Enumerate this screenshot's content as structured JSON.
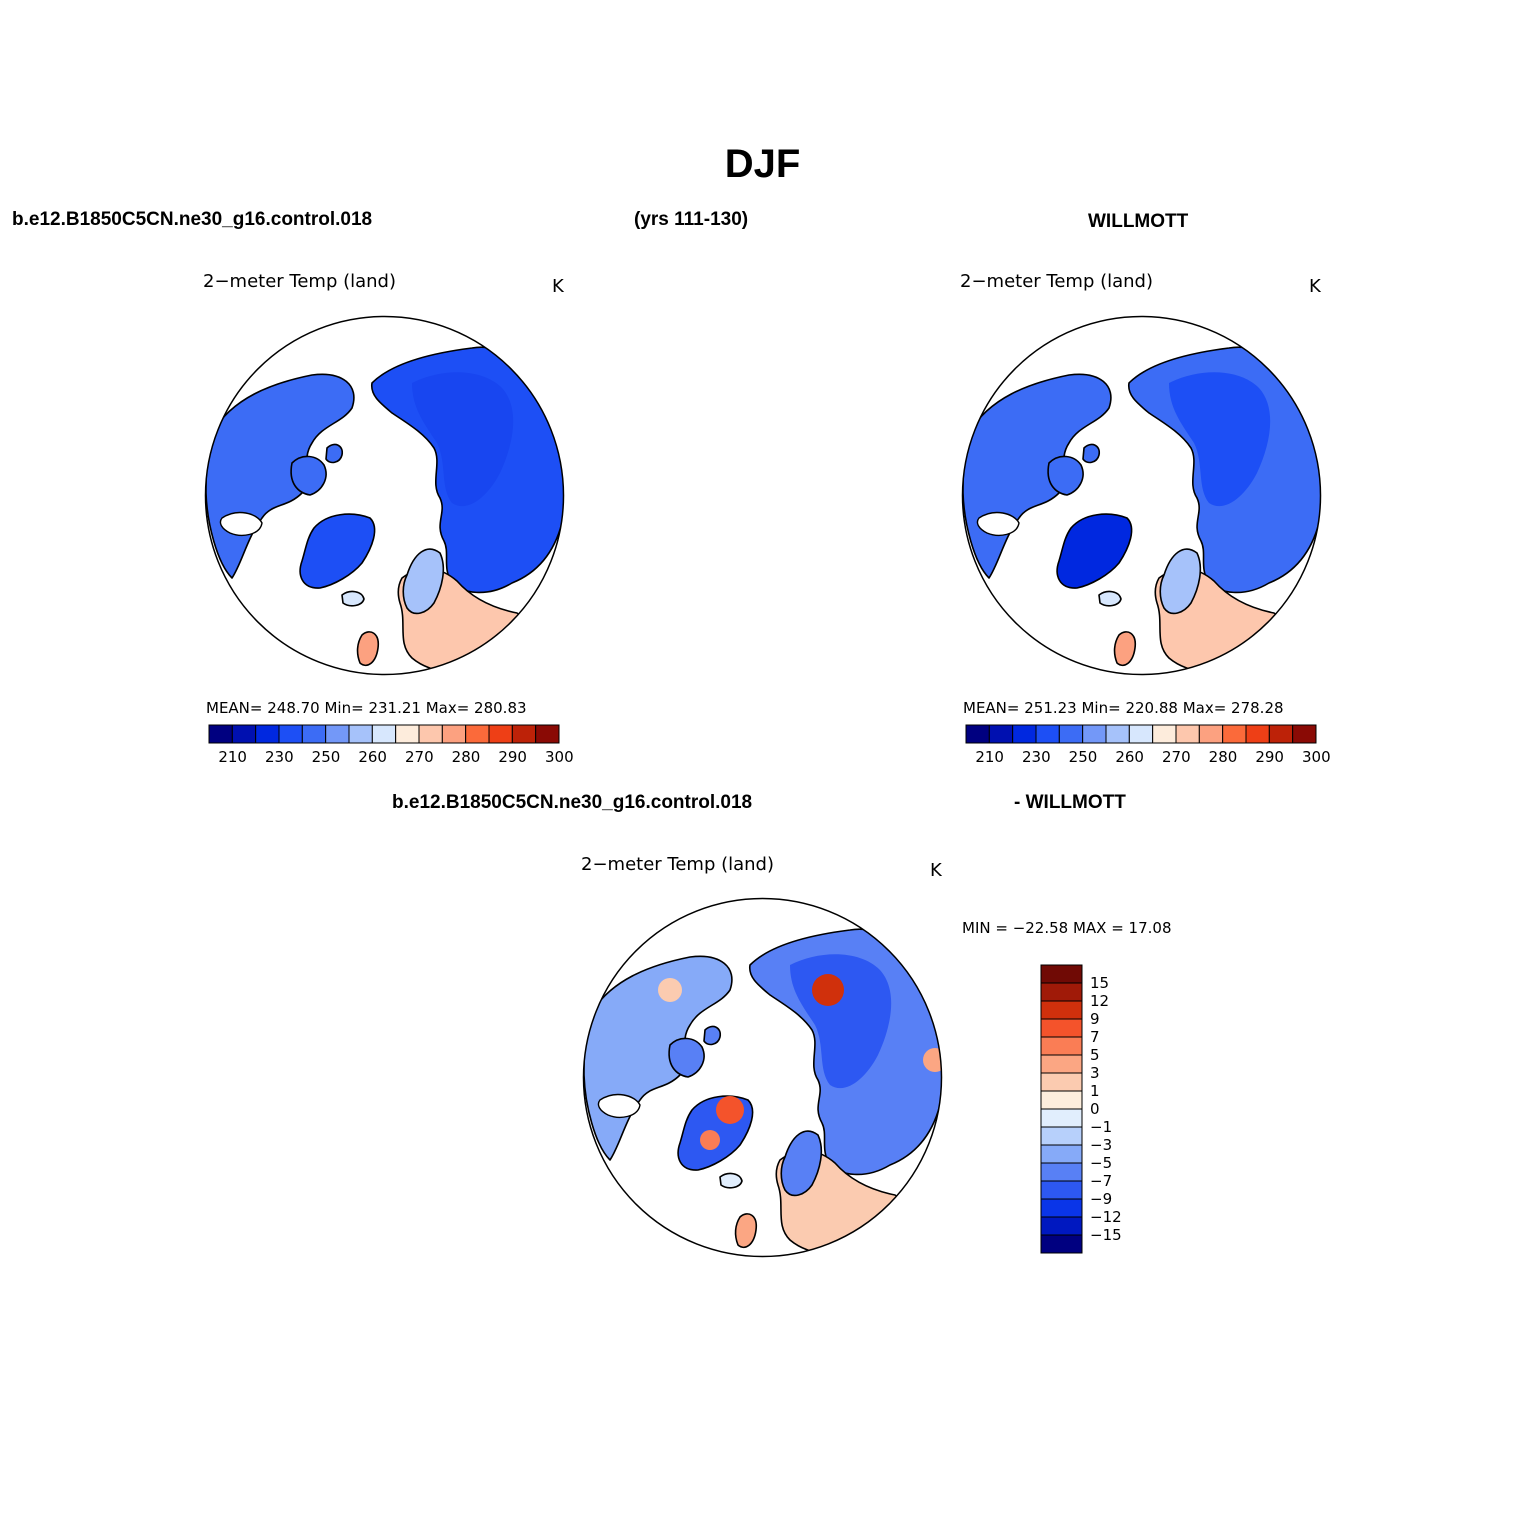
{
  "main_title": "DJF",
  "case_name": "b.e12.B1850C5CN.ne30_g16.control.018",
  "years": "(yrs 111-130)",
  "obs_name": "WILLMOTT",
  "diff_case_name": "b.e12.B1850C5CN.ne30_g16.control.018",
  "diff_obs_name": "- WILLMOTT",
  "colors": {
    "abs_scale": [
      "#000080",
      "#0010b0",
      "#0028e0",
      "#1d4ff5",
      "#3c6cf5",
      "#7398f8",
      "#a6c2fa",
      "#d7e7fd",
      "#fdecdc",
      "#fdc7ad",
      "#fca180",
      "#fb6a3a",
      "#ee3f16",
      "#bd2208",
      "#8a0a05"
    ],
    "diff_scale": [
      "#000080",
      "#0018c0",
      "#0a35e8",
      "#2d58f2",
      "#5880f5",
      "#86aaf8",
      "#b7d0fb",
      "#e1eefd",
      "#fdeedd",
      "#fbcbb0",
      "#fba683",
      "#fa7d55",
      "#f4532b",
      "#d0300c",
      "#a01a08",
      "#700a05"
    ]
  },
  "panels": {
    "left": {
      "title": "2−meter Temp (land)",
      "units": "K",
      "stats": "MEAN=  248.70   Min=  231.21   Max=  280.83",
      "mean": 248.7,
      "min": 231.21,
      "max": 280.83,
      "colorbar_labels": [
        "210",
        "230",
        "250",
        "260",
        "270",
        "280",
        "290",
        "300"
      ]
    },
    "right": {
      "title": "2−meter Temp (land)",
      "units": "K",
      "stats": "MEAN=  251.23   Min=  220.88   Max=  278.28",
      "mean": 251.23,
      "min": 220.88,
      "max": 278.28,
      "colorbar_labels": [
        "210",
        "230",
        "250",
        "260",
        "270",
        "280",
        "290",
        "300"
      ]
    },
    "diff": {
      "title": "2−meter Temp (land)",
      "units": "K",
      "stats": "MIN =  −22.58  MAX =   17.08",
      "min": -22.58,
      "max": 17.08,
      "colorbar_labels": [
        "15",
        "12",
        "9",
        "7",
        "5",
        "3",
        "1",
        "0",
        "−1",
        "−3",
        "−5",
        "−7",
        "−9",
        "−12",
        "−15"
      ]
    }
  }
}
